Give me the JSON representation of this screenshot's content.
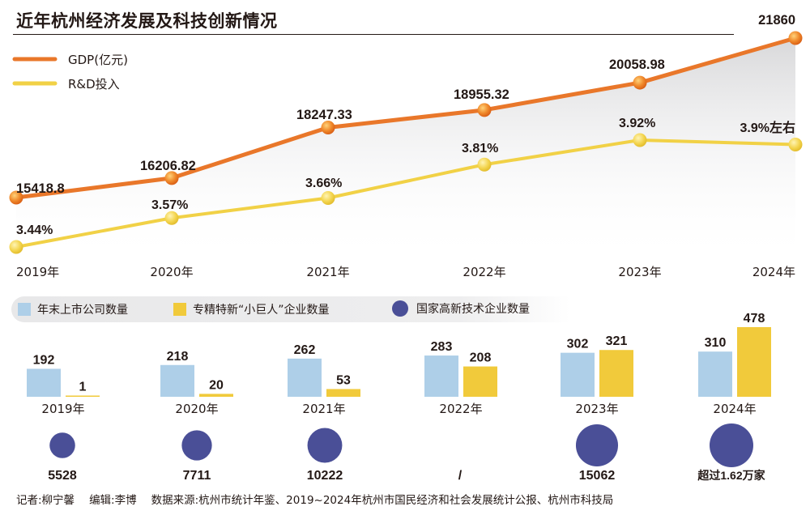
{
  "title": "近年杭州经济发展及科技创新情况",
  "chart_data": [
    {
      "type": "line",
      "categories": [
        "2019年",
        "2020年",
        "2021年",
        "2022年",
        "2023年",
        "2024年"
      ],
      "series": [
        {
          "name": "GDP(亿元)",
          "values": [
            15418.8,
            16206.82,
            18247.33,
            18955.32,
            20058.98,
            21860
          ],
          "labels": [
            "15418.8",
            "16206.82",
            "18247.33",
            "18955.32",
            "20058.98",
            "21860"
          ],
          "color": "#e9772a"
        },
        {
          "name": "R&D投入",
          "values": [
            3.44,
            3.57,
            3.66,
            3.81,
            3.92,
            3.9
          ],
          "labels": [
            "3.44%",
            "3.57%",
            "3.66%",
            "3.81%",
            "3.92%",
            "3.9%左右"
          ],
          "color": "#f1d146"
        }
      ]
    },
    {
      "type": "bar",
      "categories": [
        "2019年",
        "2020年",
        "2021年",
        "2022年",
        "2023年",
        "2024年"
      ],
      "series": [
        {
          "name": "年末上市公司数量",
          "values": [
            192,
            218,
            262,
            283,
            302,
            310
          ],
          "color": "#aecfe8"
        },
        {
          "name": "专精特新“小巨人”企业数量",
          "values": [
            1,
            20,
            53,
            208,
            321,
            478
          ],
          "color": "#f1ca3b"
        }
      ]
    },
    {
      "type": "scatter",
      "categories": [
        "2019年",
        "2020年",
        "2021年",
        "2022年",
        "2023年",
        "2024年"
      ],
      "series": [
        {
          "name": "国家高新技术企业数量",
          "values": [
            5528,
            7711,
            10222,
            null,
            15062,
            16200
          ],
          "labels": [
            "5528",
            "7711",
            "10222",
            "/",
            "15062",
            "超过1.62万家"
          ],
          "color": "#4a4f97"
        }
      ]
    }
  ],
  "footer": {
    "reporter": "记者:柳宁馨",
    "editor": "编辑:李博",
    "source": "数据来源:杭州市统计年鉴、2019~2024年杭州市国民经济和社会发展统计公报、杭州市科技局"
  }
}
